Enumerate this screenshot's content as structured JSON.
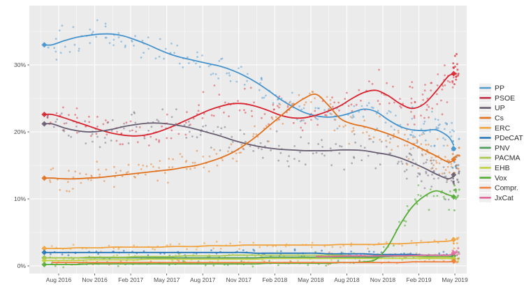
{
  "figure": {
    "background": "#ffffff",
    "panel_background": "#ebebeb",
    "grid_major_color": "#ffffff",
    "grid_minor_color": "#f5f5f5",
    "axis_text_color": "#4d4d4d",
    "legend_text_color": "#2b2b2b",
    "legend_key_background": "#efefef",
    "tick_mark_color": "#333333"
  },
  "chart_data": {
    "type": "scatter",
    "description": "Spanish general election voting-intention poll tracker: semi-transparent poll dots with smoothed trend lines per party; diamond markers at the Jun 2016 and Apr 2019 election results.",
    "title": "",
    "xlabel": "",
    "ylabel": "",
    "x_tick_labels": [
      "Aug 2016",
      "Nov 2016",
      "Feb 2017",
      "May 2017",
      "Aug 2017",
      "Nov 2017",
      "Feb 2018",
      "May 2018",
      "Aug 2018",
      "Nov 2018",
      "Feb 2019",
      "May 2019"
    ],
    "y_tick_labels": [
      "0%",
      "10%",
      "20%",
      "30%"
    ],
    "y_tick_values": [
      0,
      10,
      20,
      30
    ],
    "y_minor_values": [
      5,
      15,
      25,
      35
    ],
    "ylim": [
      -1.2,
      38.9
    ],
    "grid": true,
    "legend_position": "right",
    "months": [
      "2016-07",
      "2016-08",
      "2016-09",
      "2016-10",
      "2016-11",
      "2016-12",
      "2017-01",
      "2017-02",
      "2017-03",
      "2017-04",
      "2017-05",
      "2017-06",
      "2017-07",
      "2017-08",
      "2017-09",
      "2017-10",
      "2017-11",
      "2017-12",
      "2018-01",
      "2018-02",
      "2018-03",
      "2018-04",
      "2018-05",
      "2018-06",
      "2018-07",
      "2018-08",
      "2018-09",
      "2018-10",
      "2018-11",
      "2018-12",
      "2019-01",
      "2019-02",
      "2019-03",
      "2019-04"
    ],
    "series": [
      {
        "name": "PP",
        "color": "#4493cc",
        "election_2016": 33.0,
        "election_2019": 17.5,
        "values": [
          33.0,
          33.6,
          34.1,
          34.4,
          34.6,
          34.6,
          34.3,
          33.7,
          33.0,
          32.2,
          31.5,
          31.0,
          30.6,
          30.2,
          29.8,
          29.2,
          28.4,
          27.4,
          26.2,
          24.9,
          23.8,
          22.9,
          22.4,
          22.2,
          22.4,
          22.9,
          23.4,
          23.0,
          21.8,
          20.8,
          20.3,
          20.2,
          20.3,
          19.3
        ],
        "scatter": {
          "n": 5,
          "spread": 1.6,
          "end_n": 12,
          "end_spread": 1.8
        }
      },
      {
        "name": "PSOE",
        "color": "#d8232f",
        "election_2016": 22.6,
        "election_2019": 28.7,
        "values": [
          22.6,
          22.1,
          21.5,
          20.9,
          20.3,
          19.8,
          19.5,
          19.4,
          19.6,
          20.1,
          20.8,
          21.6,
          22.4,
          23.2,
          23.8,
          24.2,
          24.2,
          23.8,
          23.2,
          22.5,
          22.1,
          22.1,
          22.5,
          23.1,
          23.9,
          25.0,
          25.9,
          26.2,
          25.4,
          24.2,
          23.5,
          24.2,
          26.1,
          28.3
        ],
        "scatter": {
          "n": 5,
          "spread": 1.8,
          "end_n": 16,
          "end_spread": 2.2
        }
      },
      {
        "name": "UP",
        "color": "#685d70",
        "election_2016": 21.2,
        "election_2019": 13.6,
        "values": [
          21.2,
          20.6,
          20.2,
          20.0,
          20.1,
          20.4,
          20.8,
          21.1,
          21.3,
          21.3,
          21.1,
          20.8,
          20.4,
          19.9,
          19.4,
          18.8,
          18.3,
          17.9,
          17.6,
          17.4,
          17.3,
          17.2,
          17.2,
          17.2,
          17.3,
          17.3,
          17.2,
          16.9,
          16.6,
          16.1,
          15.4,
          14.6,
          13.7,
          13.0
        ],
        "scatter": {
          "n": 5,
          "spread": 1.6,
          "end_n": 12,
          "end_spread": 1.6
        }
      },
      {
        "name": "Cs",
        "color": "#e1701b",
        "election_2016": 13.1,
        "election_2019": 15.9,
        "values": [
          13.1,
          13.0,
          13.0,
          13.1,
          13.2,
          13.4,
          13.6,
          13.8,
          14.0,
          14.2,
          14.4,
          14.7,
          15.0,
          15.5,
          16.1,
          16.9,
          18.0,
          19.3,
          20.8,
          22.3,
          23.8,
          25.0,
          25.6,
          24.0,
          22.0,
          21.2,
          20.8,
          20.3,
          19.7,
          19.0,
          18.2,
          17.3,
          16.4,
          15.5
        ],
        "scatter": {
          "n": 5,
          "spread": 1.5,
          "end_n": 12,
          "end_spread": 1.6
        }
      },
      {
        "name": "ERC",
        "color": "#f0a23c",
        "election_2016": 2.6,
        "election_2019": 3.9,
        "values": [
          2.6,
          2.6,
          2.7,
          2.7,
          2.7,
          2.8,
          2.8,
          2.8,
          2.8,
          2.8,
          2.9,
          2.9,
          2.9,
          3.0,
          3.0,
          3.0,
          3.1,
          3.1,
          3.1,
          3.1,
          3.1,
          3.1,
          3.1,
          3.1,
          3.2,
          3.2,
          3.2,
          3.2,
          3.3,
          3.3,
          3.4,
          3.5,
          3.6,
          3.7
        ],
        "scatter": {
          "n": 2,
          "spread": 0.4,
          "end_n": 8,
          "end_spread": 0.8
        }
      },
      {
        "name": "PDeCAT",
        "color": "#2274b8",
        "election_2016": 2.0,
        "election_2019": null,
        "values": [
          2.0,
          2.0,
          2.0,
          2.0,
          2.0,
          2.0,
          2.0,
          2.0,
          2.0,
          2.0,
          2.0,
          2.0,
          2.0,
          2.0,
          2.0,
          2.0,
          2.0,
          1.9,
          1.9,
          1.9,
          1.9,
          1.9,
          1.9,
          1.8,
          1.8,
          1.8,
          1.8,
          1.7,
          1.7,
          1.7,
          1.7,
          1.6,
          1.6,
          1.6
        ],
        "scatter": {
          "n": 2,
          "spread": 0.35,
          "end_n": 0,
          "end_spread": 0
        }
      },
      {
        "name": "PNV",
        "color": "#4c9c5c",
        "election_2016": 1.2,
        "election_2019": 1.5,
        "values": [
          1.2,
          1.2,
          1.2,
          1.2,
          1.2,
          1.2,
          1.2,
          1.2,
          1.2,
          1.2,
          1.2,
          1.2,
          1.2,
          1.2,
          1.2,
          1.2,
          1.2,
          1.2,
          1.3,
          1.3,
          1.3,
          1.3,
          1.3,
          1.3,
          1.3,
          1.3,
          1.3,
          1.3,
          1.4,
          1.4,
          1.4,
          1.4,
          1.4,
          1.4
        ],
        "scatter": {
          "n": 1,
          "spread": 0.3,
          "end_n": 4,
          "end_spread": 0.5
        }
      },
      {
        "name": "PACMA",
        "color": "#a9c94d",
        "election_2016": 1.2,
        "election_2019": 1.1,
        "values": [
          1.2,
          1.2,
          1.2,
          1.3,
          1.3,
          1.3,
          1.3,
          1.4,
          1.4,
          1.4,
          1.4,
          1.5,
          1.5,
          1.5,
          1.5,
          1.6,
          1.6,
          1.6,
          1.6,
          1.6,
          1.6,
          1.6,
          1.6,
          1.6,
          1.6,
          1.5,
          1.5,
          1.5,
          1.5,
          1.4,
          1.4,
          1.3,
          1.3,
          1.3
        ],
        "scatter": {
          "n": 2,
          "spread": 0.35,
          "end_n": 5,
          "end_spread": 0.5
        }
      },
      {
        "name": "EHB",
        "color": "#c0d23f",
        "election_2016": 0.8,
        "election_2019": 1.0,
        "values": [
          0.8,
          0.8,
          0.8,
          0.9,
          0.9,
          0.9,
          0.9,
          0.9,
          1.0,
          1.0,
          1.0,
          1.0,
          1.0,
          1.0,
          1.0,
          1.0,
          1.0,
          1.0,
          1.1,
          1.1,
          1.1,
          1.1,
          1.1,
          1.1,
          1.1,
          1.1,
          1.1,
          1.1,
          1.1,
          1.1,
          1.1,
          1.1,
          1.1,
          1.1
        ],
        "scatter": {
          "n": 1,
          "spread": 0.3,
          "end_n": 4,
          "end_spread": 0.5
        }
      },
      {
        "name": "Vox",
        "color": "#55ac34",
        "election_2016": 0.2,
        "election_2019": 10.3,
        "values": [
          0.2,
          0.2,
          0.2,
          0.3,
          0.3,
          0.3,
          0.3,
          0.3,
          0.3,
          0.3,
          0.3,
          0.3,
          0.3,
          0.3,
          0.3,
          0.3,
          0.3,
          0.3,
          0.4,
          0.4,
          0.4,
          0.4,
          0.4,
          0.4,
          0.5,
          0.5,
          0.6,
          1.0,
          3.0,
          6.2,
          8.8,
          10.4,
          11.2,
          10.6
        ],
        "scatter": {
          "n": 2,
          "spread": 0.3,
          "spread_hi": 1.3,
          "end_n": 10,
          "end_spread": 1.5
        }
      },
      {
        "name": "Compr.",
        "color": "#ef7e3b",
        "election_2016": null,
        "election_2019": 0.7,
        "values": [
          0.5,
          0.5,
          0.5,
          0.5,
          0.5,
          0.5,
          0.5,
          0.5,
          0.5,
          0.5,
          0.5,
          0.5,
          0.5,
          0.5,
          0.5,
          0.5,
          0.5,
          0.5,
          0.5,
          0.5,
          0.5,
          0.5,
          0.5,
          0.5,
          0.5,
          0.5,
          0.5,
          0.5,
          0.5,
          0.5,
          0.6,
          0.6,
          0.6,
          0.6
        ],
        "scatter": {
          "n": 1,
          "spread": 0.25,
          "end_n": 4,
          "end_spread": 0.5
        }
      },
      {
        "name": "JxCat",
        "color": "#e2679b",
        "election_2016": null,
        "election_2019": 1.9,
        "values": [
          null,
          null,
          null,
          null,
          null,
          null,
          null,
          null,
          null,
          null,
          null,
          null,
          null,
          null,
          null,
          null,
          null,
          null,
          null,
          null,
          null,
          null,
          1.4,
          1.4,
          1.45,
          1.5,
          1.5,
          1.5,
          1.5,
          1.5,
          1.55,
          1.6,
          1.6,
          1.6
        ],
        "scatter": {
          "n": 2,
          "spread": 0.4,
          "end_n": 8,
          "end_spread": 0.7
        }
      }
    ]
  },
  "legend": {
    "items": [
      {
        "label": "PP",
        "color": "#4f9bce"
      },
      {
        "label": "PSOE",
        "color": "#c23148"
      },
      {
        "label": "UP",
        "color": "#685d70"
      },
      {
        "label": "Cs",
        "color": "#e1701b"
      },
      {
        "label": "ERC",
        "color": "#f0a23c"
      },
      {
        "label": "PDeCAT",
        "color": "#2274b8"
      },
      {
        "label": "PNV",
        "color": "#4c9c5c"
      },
      {
        "label": "PACMA",
        "color": "#a9c94d"
      },
      {
        "label": "EHB",
        "color": "#c0d23f"
      },
      {
        "label": "Vox",
        "color": "#55ac34"
      },
      {
        "label": "Compr.",
        "color": "#ef7e3b"
      },
      {
        "label": "JxCat",
        "color": "#e2679b"
      }
    ]
  }
}
